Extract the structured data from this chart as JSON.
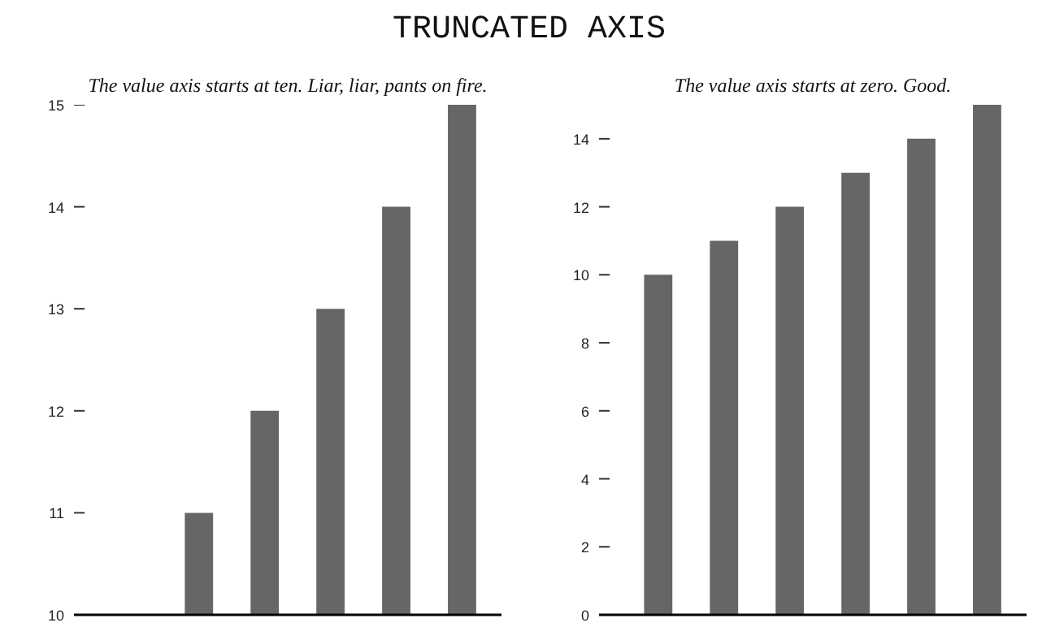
{
  "chart_data": [
    {
      "type": "bar",
      "title": "TRUNCATED AXIS",
      "subtitle": "The value axis starts at ten. Liar, liar, pants on fire.",
      "categories": [
        null,
        null,
        null,
        null,
        null,
        null
      ],
      "values": [
        10,
        11,
        12,
        13,
        14,
        15
      ],
      "color": "#666666",
      "ylim": [
        10,
        15
      ],
      "yticks": [
        10,
        11,
        12,
        13,
        14,
        15
      ],
      "tick_labels": "y",
      "grid": false
    },
    {
      "type": "bar",
      "subtitle": "The value axis starts at zero. Good.",
      "categories": [
        null,
        null,
        null,
        null,
        null,
        null
      ],
      "values": [
        10,
        11,
        12,
        13,
        14,
        15
      ],
      "color": "#666666",
      "ylim": [
        0,
        15
      ],
      "yticks": [
        0,
        2,
        4,
        6,
        8,
        10,
        12,
        14
      ],
      "tick_labels": "y",
      "grid": false
    }
  ]
}
